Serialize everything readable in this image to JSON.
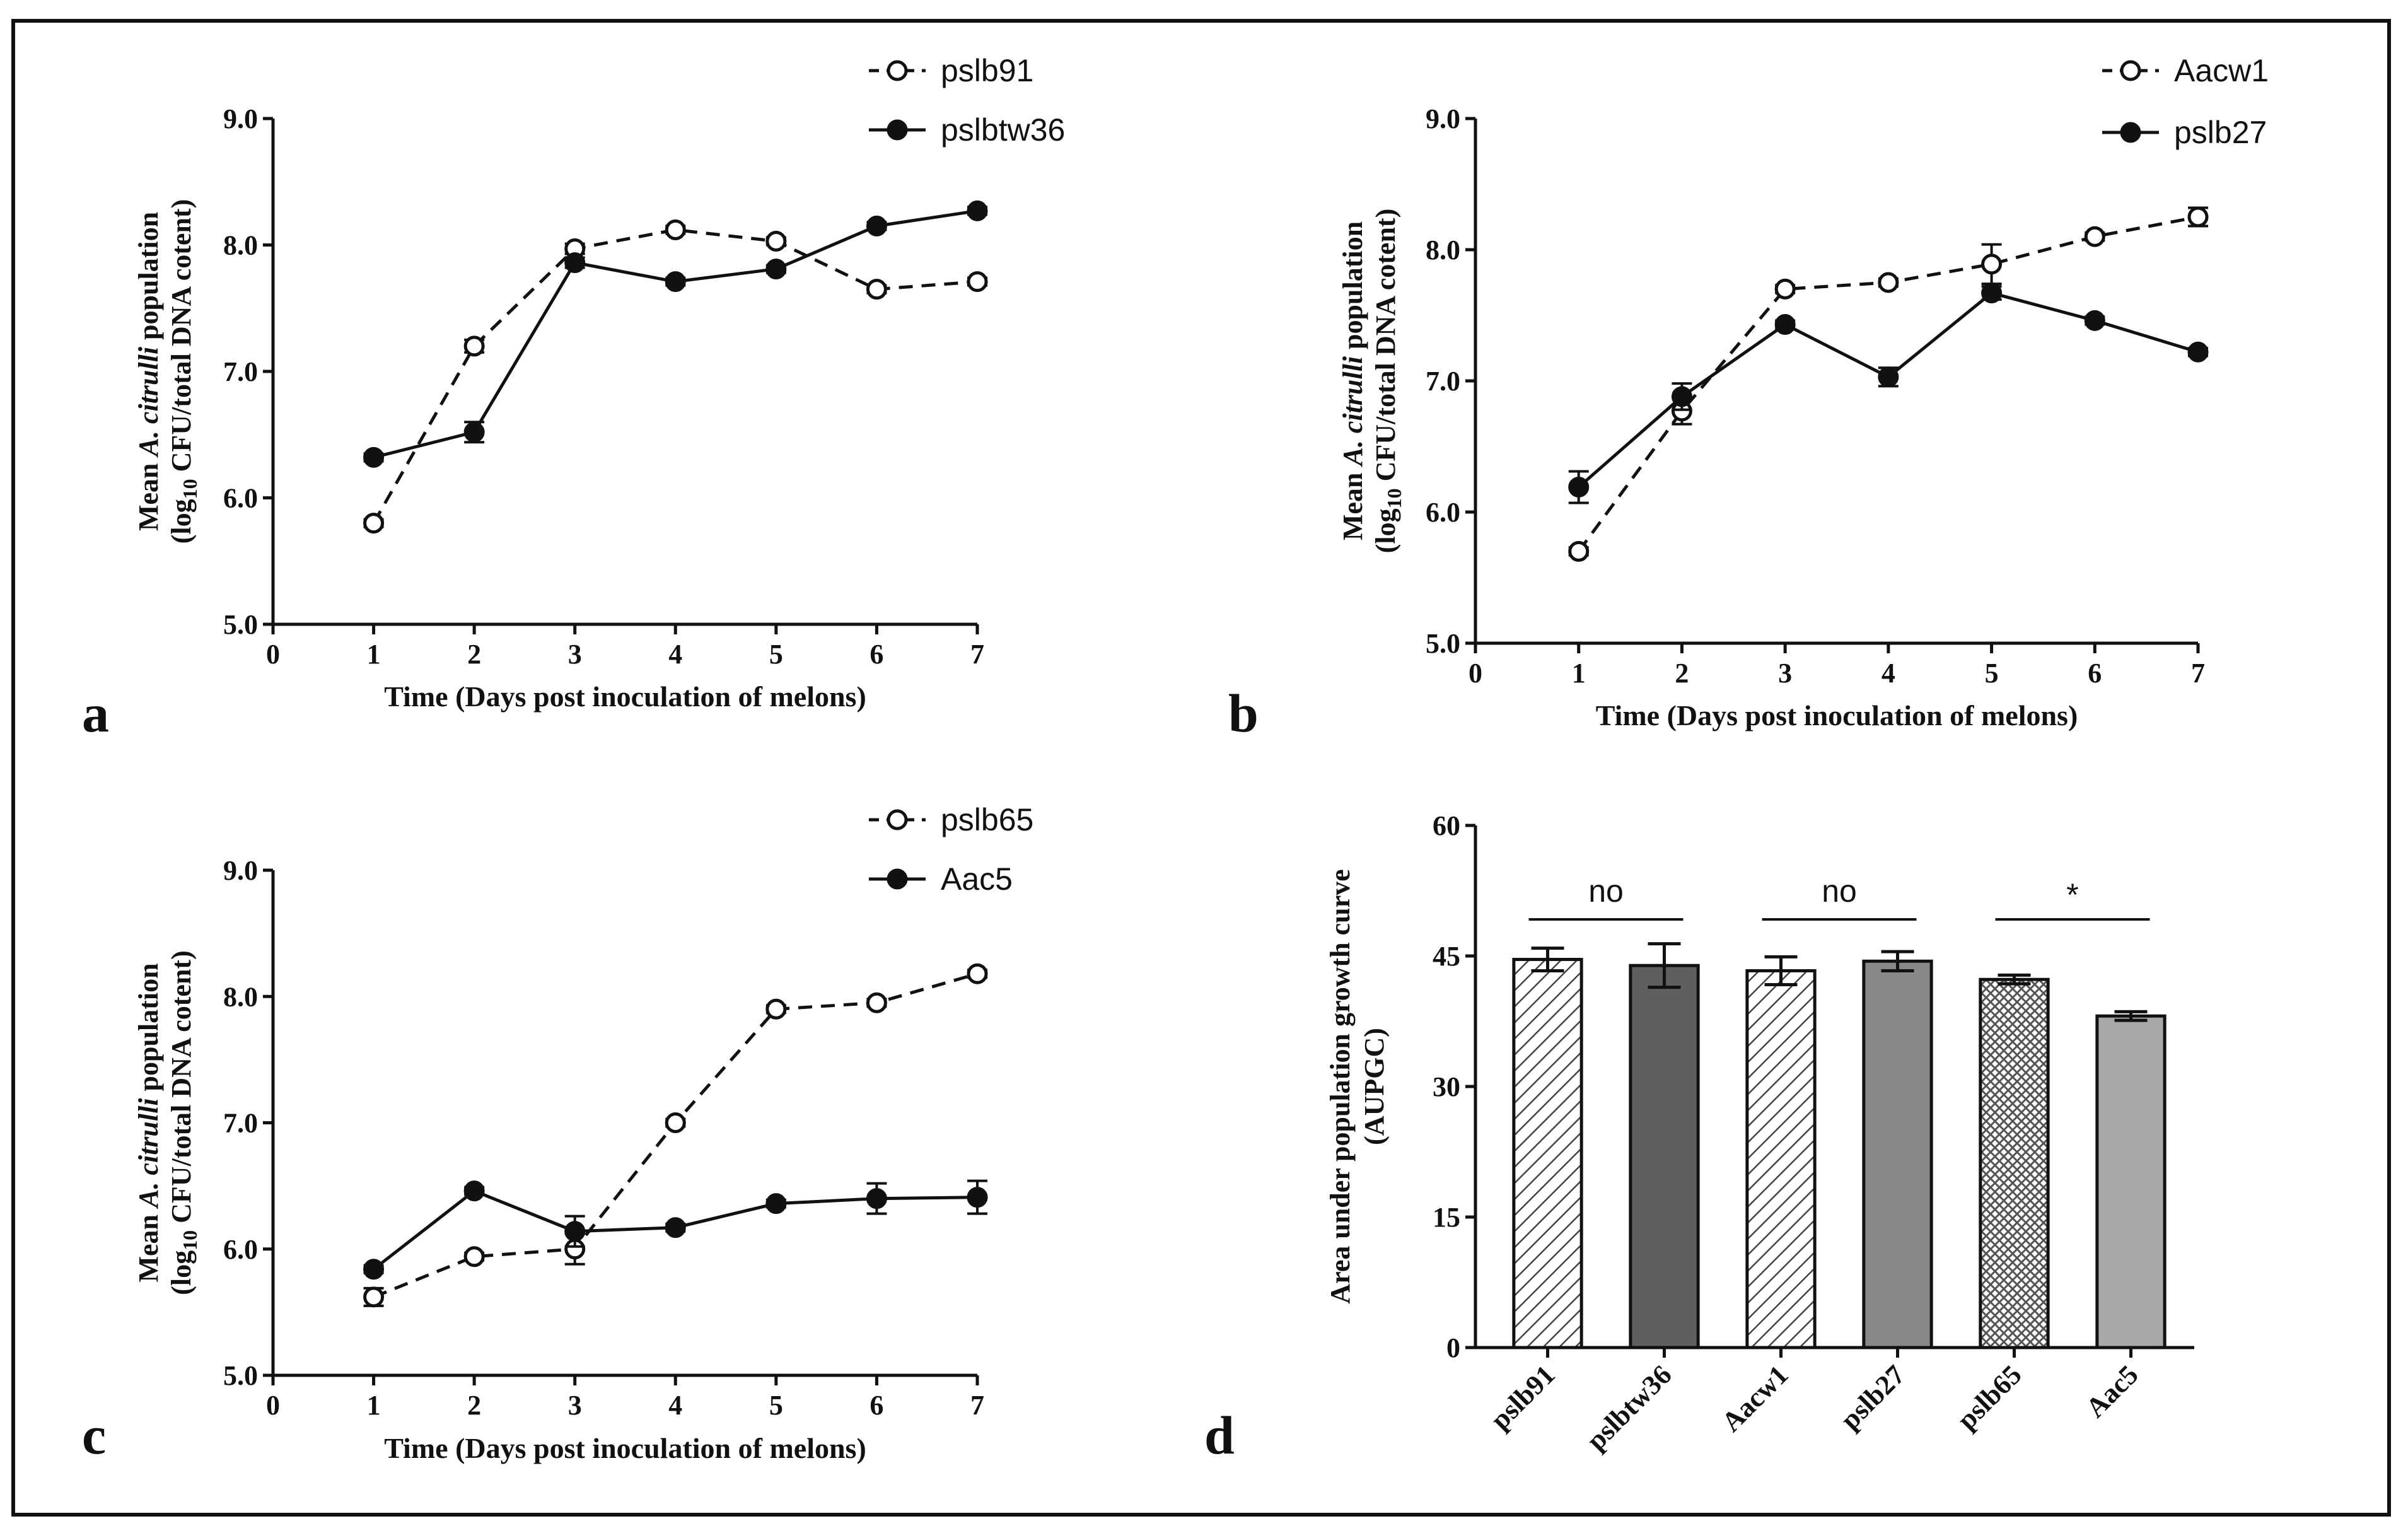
{
  "chart_data": [
    {
      "type": "line",
      "panel_label": "a",
      "xlabel": "Time (Days post inoculation of melons)",
      "ylabel_line1_prefix": "Mean ",
      "ylabel_line1_italic": "A. citrulli",
      "ylabel_line1_suffix": " population",
      "ylabel_line2_pre": "(log",
      "ylabel_line2_sub": "10",
      "ylabel_line2_post": " CFU/total DNA cotent)",
      "xlim": [
        0,
        7
      ],
      "ylim": [
        5.0,
        9.0
      ],
      "x_ticks": [
        "0",
        "1",
        "2",
        "3",
        "4",
        "5",
        "6",
        "7"
      ],
      "y_ticks": [
        "5.0",
        "6.0",
        "7.0",
        "8.0",
        "9.0"
      ],
      "x": [
        1,
        2,
        3,
        4,
        5,
        6,
        7
      ],
      "series": [
        {
          "name": "pslb91",
          "style": "dashed-open",
          "values": [
            5.8,
            7.2,
            7.97,
            8.12,
            8.03,
            7.65,
            7.71
          ],
          "errors": [
            0.03,
            0.05,
            0.04,
            0.03,
            0.03,
            0.03,
            0.03
          ]
        },
        {
          "name": "pslbtw36",
          "style": "solid-filled",
          "values": [
            6.32,
            6.52,
            7.86,
            7.71,
            7.81,
            8.15,
            8.27
          ],
          "errors": [
            0.03,
            0.08,
            0.04,
            0.03,
            0.03,
            0.03,
            0.03
          ]
        }
      ]
    },
    {
      "type": "line",
      "panel_label": "b",
      "xlabel": "Time (Days post inoculation of melons)",
      "ylabel_line1_prefix": "Mean ",
      "ylabel_line1_italic": "A. citrulli",
      "ylabel_line1_suffix": " population",
      "ylabel_line2_pre": "(log",
      "ylabel_line2_sub": "10",
      "ylabel_line2_post": " CFU/total DNA cotent)",
      "xlim": [
        0,
        7
      ],
      "ylim": [
        5.0,
        9.0
      ],
      "x_ticks": [
        "0",
        "1",
        "2",
        "3",
        "4",
        "5",
        "6",
        "7"
      ],
      "y_ticks": [
        "5.0",
        "6.0",
        "7.0",
        "8.0",
        "9.0"
      ],
      "x": [
        1,
        2,
        3,
        4,
        5,
        6,
        7
      ],
      "series": [
        {
          "name": "Aacw1",
          "style": "dashed-open",
          "values": [
            5.7,
            6.77,
            7.7,
            7.75,
            7.89,
            8.1,
            8.25
          ],
          "errors": [
            0.03,
            0.1,
            0.03,
            0.03,
            0.15,
            0.03,
            0.07
          ]
        },
        {
          "name": "pslb27",
          "style": "solid-filled",
          "values": [
            6.19,
            6.88,
            7.43,
            7.03,
            7.67,
            7.46,
            7.22
          ],
          "errors": [
            0.12,
            0.1,
            0.03,
            0.07,
            0.05,
            0.03,
            0.03
          ]
        }
      ]
    },
    {
      "type": "line",
      "panel_label": "c",
      "xlabel": "Time (Days post inoculation of melons)",
      "ylabel_line1_prefix": "Mean ",
      "ylabel_line1_italic": "A. citrulli",
      "ylabel_line1_suffix": " population",
      "ylabel_line2_pre": "(log",
      "ylabel_line2_sub": "10",
      "ylabel_line2_post": " CFU/total DNA cotent)",
      "xlim": [
        0,
        7
      ],
      "ylim": [
        5.0,
        9.0
      ],
      "x_ticks": [
        "0",
        "1",
        "2",
        "3",
        "4",
        "5",
        "6",
        "7"
      ],
      "y_ticks": [
        "5.0",
        "6.0",
        "7.0",
        "8.0",
        "9.0"
      ],
      "x": [
        1,
        2,
        3,
        4,
        5,
        6,
        7
      ],
      "series": [
        {
          "name": "pslb65",
          "style": "dashed-open",
          "values": [
            5.62,
            5.94,
            6.0,
            7.0,
            7.9,
            7.95,
            8.18
          ],
          "errors": [
            0.07,
            0.03,
            0.12,
            0.03,
            0.03,
            0.03,
            0.03
          ]
        },
        {
          "name": "Aac5",
          "style": "solid-filled",
          "values": [
            5.84,
            6.46,
            6.14,
            6.17,
            6.36,
            6.4,
            6.41
          ],
          "errors": [
            0.03,
            0.03,
            0.12,
            0.03,
            0.03,
            0.12,
            0.13
          ]
        }
      ]
    },
    {
      "type": "bar",
      "panel_label": "d",
      "ylabel_line1": "Area under population growth curve",
      "ylabel_line2": "(AUPGC)",
      "ylim": [
        0,
        60
      ],
      "y_ticks": [
        "0",
        "15",
        "30",
        "45",
        "60"
      ],
      "categories": [
        "pslb91",
        "pslbtw36",
        "Aacw1",
        "pslb27",
        "pslb65",
        "Aac5"
      ],
      "values": [
        44.6,
        43.9,
        43.3,
        44.4,
        42.3,
        38.1
      ],
      "errors": [
        1.3,
        2.5,
        1.6,
        1.1,
        0.5,
        0.5
      ],
      "fills": [
        "hatch-light",
        "#5f5f5f",
        "hatch-light",
        "#888888",
        "hatch-cross",
        "#a8a8aa"
      ],
      "significance": [
        {
          "pair": [
            0,
            1
          ],
          "label": "no"
        },
        {
          "pair": [
            2,
            3
          ],
          "label": "no"
        },
        {
          "pair": [
            4,
            5
          ],
          "label": "*"
        }
      ]
    }
  ]
}
